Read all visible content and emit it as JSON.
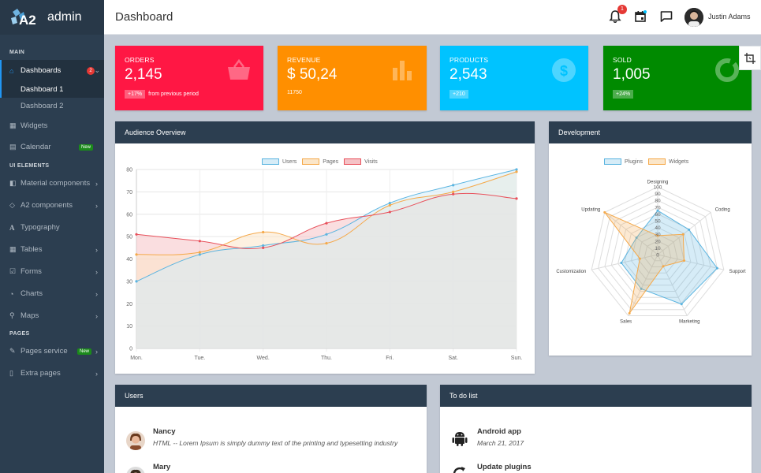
{
  "brand": {
    "logo_text": "A2",
    "name": "admin"
  },
  "header": {
    "title": "Dashboard",
    "notification_count": "1",
    "user_name": "Justin Adams"
  },
  "sidebar": {
    "section_main": "MAIN",
    "section_ui": "UI ELEMENTS",
    "section_pages": "PAGES",
    "dashboards": {
      "label": "Dashboards",
      "badge": "2"
    },
    "dashboard1": "Dashboard 1",
    "dashboard2": "Dashboard 2",
    "widgets": "Widgets",
    "calendar": {
      "label": "Calendar",
      "badge": "New"
    },
    "material": "Material components",
    "a2components": "A2 components",
    "typography": "Typography",
    "tables": "Tables",
    "forms": "Forms",
    "charts": "Charts",
    "maps": "Maps",
    "pages_service": {
      "label": "Pages service",
      "badge": "New"
    },
    "extra_pages": "Extra pages"
  },
  "stats": {
    "orders": {
      "label": "ORDERS",
      "value": "2,145",
      "chip": "+17%",
      "note": "from previous period",
      "color": "#ff1744"
    },
    "revenue": {
      "label": "REVENUE",
      "value": "$ 50,24",
      "note": "11750",
      "color": "#ff8f00"
    },
    "products": {
      "label": "PRODUCTS",
      "value": "2,543",
      "chip": "+210",
      "color": "#00c3ff"
    },
    "sold": {
      "label": "SOLD",
      "value": "1,005",
      "chip": "+24%",
      "color": "#008a00"
    }
  },
  "audience": {
    "title": "Audience Overview"
  },
  "development": {
    "title": "Development"
  },
  "users": {
    "title": "Users",
    "items": [
      {
        "name": "Nancy",
        "desc": "HTML -- Lorem Ipsum is simply dummy text of the printing and typesetting industry"
      },
      {
        "name": "Mary"
      }
    ]
  },
  "todo": {
    "title": "To do list",
    "items": [
      {
        "name": "Android app",
        "date": "March 21, 2017"
      },
      {
        "name": "Update plugins"
      }
    ]
  },
  "chart_data": [
    {
      "type": "area",
      "categories": [
        "Mon.",
        "Tue.",
        "Wed.",
        "Thu.",
        "Fri.",
        "Sat.",
        "Sun."
      ],
      "ylim": [
        0,
        80
      ],
      "yticks": [
        0,
        10,
        20,
        30,
        40,
        50,
        60,
        70,
        80
      ],
      "legend_position": "top",
      "series": [
        {
          "name": "Users",
          "values": [
            30,
            42,
            46,
            51,
            65,
            73,
            80
          ],
          "color": "#5ab4e0",
          "fill": "#d6ecf7"
        },
        {
          "name": "Pages",
          "values": [
            42,
            43,
            52,
            47,
            64,
            70,
            79
          ],
          "color": "#f5a94a",
          "fill": "#fbe6c9"
        },
        {
          "name": "Visits",
          "values": [
            51,
            48,
            45,
            56,
            61,
            69,
            67
          ],
          "color": "#e8505b",
          "fill": "#f5c2c6"
        }
      ]
    },
    {
      "type": "radar",
      "categories": [
        "Designing",
        "Coding",
        "Support",
        "Marketing",
        "Sales",
        "Customization",
        "Updating"
      ],
      "rlim": [
        0,
        100
      ],
      "rticks": [
        0,
        10,
        20,
        30,
        40,
        50,
        60,
        70,
        80,
        90,
        100
      ],
      "legend_position": "top",
      "series": [
        {
          "name": "Plugins",
          "values": [
            65,
            59,
            90,
            81,
            56,
            55,
            40
          ],
          "color": "#5ab4e0",
          "fill": "rgba(90,180,224,0.25)"
        },
        {
          "name": "Widgets",
          "values": [
            28,
            48,
            40,
            19,
            96,
            27,
            100
          ],
          "color": "#f5a94a",
          "fill": "rgba(245,169,74,0.25)"
        }
      ]
    }
  ]
}
